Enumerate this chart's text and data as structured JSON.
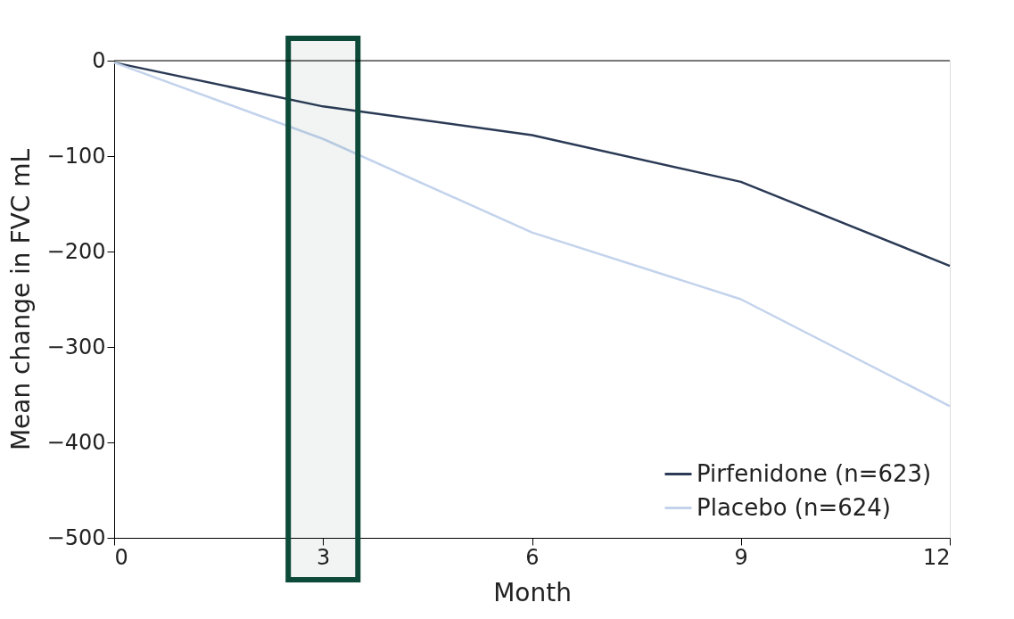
{
  "chart_data": {
    "type": "line",
    "xlabel": "Month",
    "ylabel": "Mean change in FVC mL",
    "x": [
      0,
      3,
      6,
      9,
      12
    ],
    "series": [
      {
        "name": "Pirfenidone (n=623)",
        "color": "#2b3a55",
        "values": [
          -2,
          -48,
          -78,
          -127,
          -215
        ]
      },
      {
        "name": "Placebo (n=624)",
        "color": "#c3d3ec",
        "values": [
          -2,
          -82,
          -180,
          -250,
          -362
        ]
      }
    ],
    "xlim": [
      0,
      12
    ],
    "xticks": [
      0,
      3,
      6,
      9,
      12
    ],
    "ylim": [
      -500,
      0
    ],
    "yticks": [
      -500,
      -400,
      -300,
      -200,
      -100,
      0
    ],
    "ref_lines": [
      {
        "axis": "y",
        "value": 0,
        "color": "#000000"
      }
    ],
    "bands": [
      {
        "axis": "x",
        "from": 2.5,
        "to": 3.5,
        "color": "#0d4a3a"
      }
    ],
    "legend": "bottom right",
    "grid": false,
    "marker": "none",
    "line_style": "solid"
  }
}
